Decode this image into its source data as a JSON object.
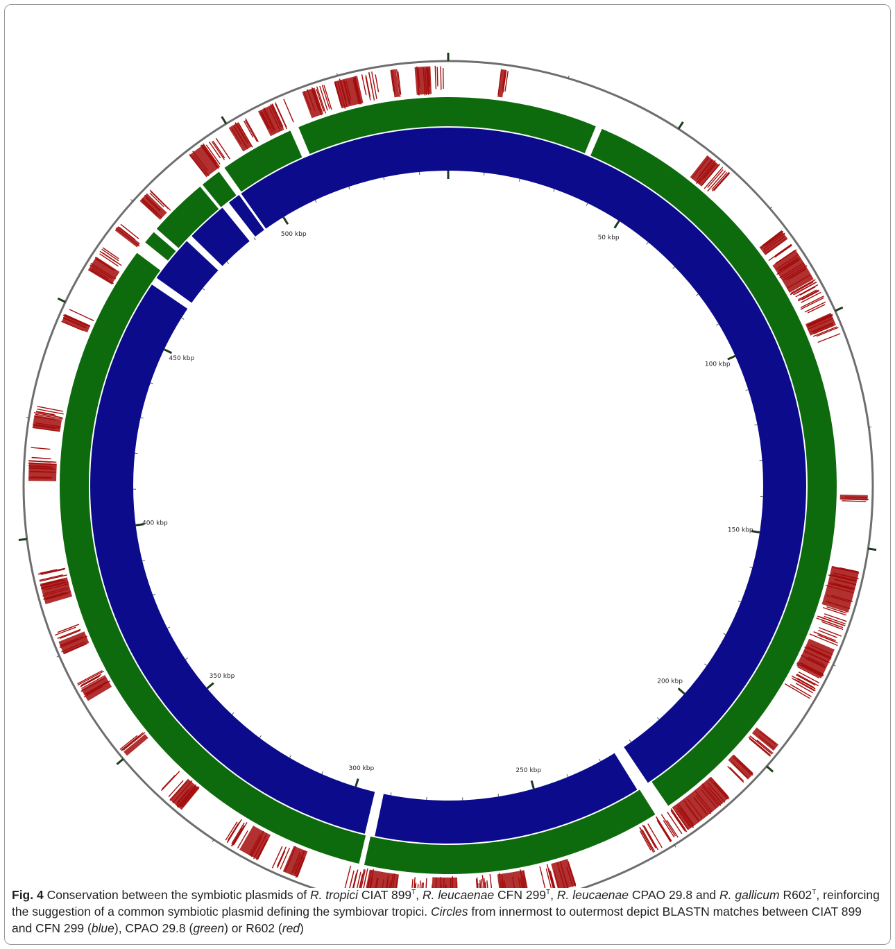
{
  "figure": {
    "label": "Fig. 4",
    "tick_unit": "kbp",
    "ticks": [
      {
        "pos": 50,
        "label": "50 kbp"
      },
      {
        "pos": 100,
        "label": "100 kbp"
      },
      {
        "pos": 150,
        "label": "150 kbp"
      },
      {
        "pos": 200,
        "label": "200 kbp"
      },
      {
        "pos": 250,
        "label": "250 kbp"
      },
      {
        "pos": 300,
        "label": "300 kbp"
      },
      {
        "pos": 350,
        "label": "350 kbp"
      },
      {
        "pos": 400,
        "label": "400 kbp"
      },
      {
        "pos": 450,
        "label": "450 kbp"
      },
      {
        "pos": 500,
        "label": "500 kbp"
      }
    ],
    "reference_length_kbp": 548,
    "rings": [
      {
        "name": "CFN 299",
        "color": "#0b0b8c",
        "gaps_kbp": [
          [
            493.6,
            494.2
          ],
          [
            488.5,
            490.5
          ],
          [
            476.6,
            478.3
          ],
          [
            463.0,
            465.0
          ],
          [
            292.0,
            294.5
          ],
          [
            222.4,
            225.5
          ]
        ]
      },
      {
        "name": "CPAO 29.8",
        "color": "#0d6b0d",
        "gaps_kbp": [
          [
            511.5,
            513.5
          ],
          [
            493.0,
            494.5
          ],
          [
            487.6,
            488.3
          ],
          [
            473.0,
            474.0
          ],
          [
            467.0,
            470.0
          ],
          [
            293.0,
            294.2
          ],
          [
            221.5,
            225.0
          ],
          [
            34.0,
            35.5
          ]
        ]
      },
      {
        "name": "R602",
        "color": "#a30d0d",
        "segments_kbp": [
          [
            507,
            513
          ],
          [
            517,
            522
          ],
          [
            524,
            533
          ],
          [
            536,
            538
          ],
          [
            541,
            547
          ],
          [
            11,
            13
          ],
          [
            58,
            64
          ],
          [
            80,
            84
          ],
          [
            85,
            98
          ],
          [
            100,
            105
          ],
          [
            139,
            141
          ],
          [
            155,
            171
          ],
          [
            172,
            184
          ],
          [
            195,
            198
          ],
          [
            203,
            206
          ],
          [
            210,
            230
          ],
          [
            247,
            254
          ],
          [
            257,
            268
          ],
          [
            272,
            282
          ],
          [
            285,
            297
          ],
          [
            306,
            312
          ],
          [
            315,
            323
          ],
          [
            334,
            340
          ],
          [
            350,
            352
          ],
          [
            364,
            369
          ],
          [
            375,
            380
          ],
          [
            386,
            394
          ],
          [
            412,
            419
          ],
          [
            423,
            428
          ],
          [
            446,
            449
          ],
          [
            458,
            464
          ],
          [
            468,
            470
          ],
          [
            476,
            480
          ],
          [
            490,
            497
          ],
          [
            500,
            504
          ]
        ]
      }
    ],
    "caption": {
      "text_1": "Conservation between the symbiotic plasmids of ",
      "sp_1": "R. tropici",
      "strain_1": " CIAT 899",
      "sup_1": "T",
      "sep_1": ", ",
      "sp_2": "R. leucaenae",
      "strain_2": " CFN 299",
      "sup_2": "T",
      "sep_2": ", ",
      "sp_3": "R. leucaenae",
      "strain_3": " CPAO 29.8 and ",
      "sp_4": "R. gallicum",
      "strain_4": " R602",
      "sup_4": "T",
      "text_2": ", reinforcing the suggestion of a common symbiotic plasmid defining the symbiovar tropici. ",
      "circles_word": "Circles",
      "text_3": " from innermost to outermost depict BLASTN matches between CIAT 899 and CFN 299 (",
      "blue_word": "blue",
      "text_4": "), CPAO 29.8 (",
      "green_word": "green",
      "text_5": ") or R602 (",
      "red_word": "red",
      "text_6": ")"
    }
  }
}
